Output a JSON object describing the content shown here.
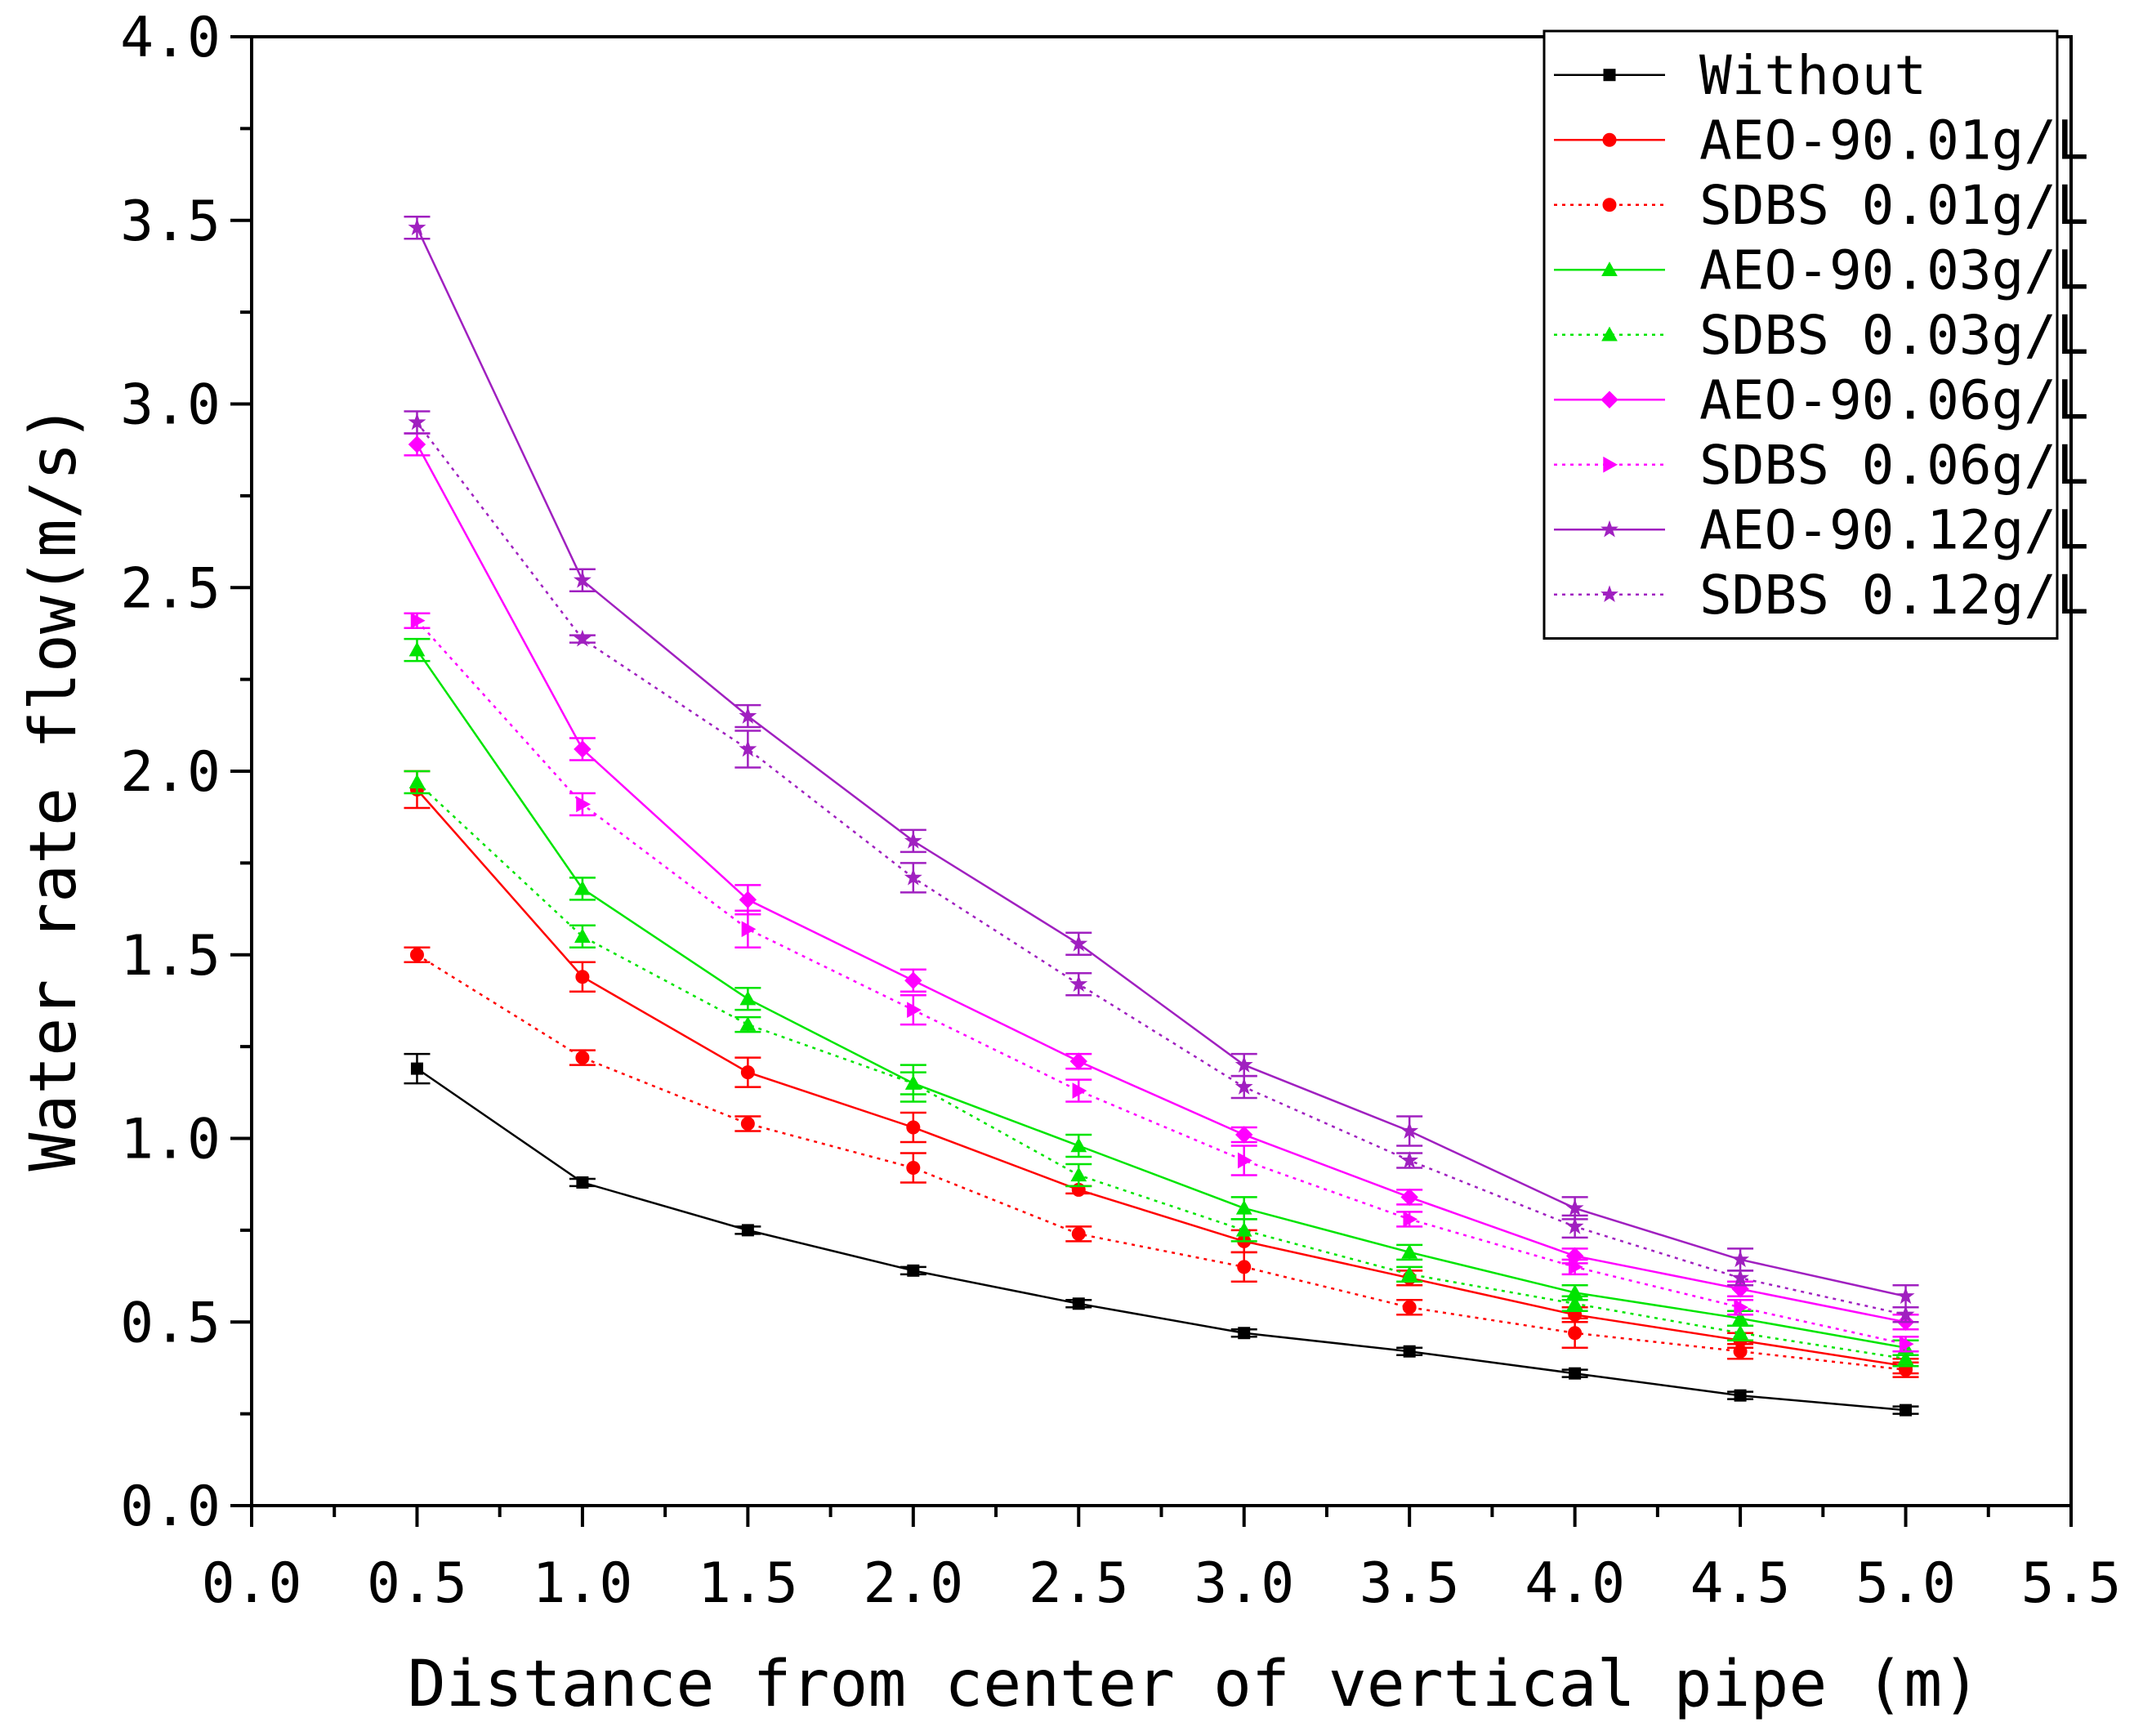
{
  "chart_data": {
    "type": "line",
    "title": "",
    "xlabel": "Distance from center of vertical pipe (m)",
    "ylabel": "Water rate flow(m/s)",
    "xlim": [
      0.0,
      5.5
    ],
    "ylim": [
      0.0,
      4.0
    ],
    "x_ticks": [
      "0.0",
      "0.5",
      "1.0",
      "1.5",
      "2.0",
      "2.5",
      "3.0",
      "3.5",
      "4.0",
      "4.5",
      "5.0",
      "5.5"
    ],
    "y_ticks": [
      "0.0",
      "0.5",
      "1.0",
      "1.5",
      "2.0",
      "2.5",
      "3.0",
      "3.5",
      "4.0"
    ],
    "x": [
      0.5,
      1.0,
      1.5,
      2.0,
      2.5,
      3.0,
      3.5,
      4.0,
      4.5,
      5.0
    ],
    "legend_position": "top-right",
    "series": [
      {
        "name": "Without",
        "color": "#000000",
        "line": "solid",
        "marker": "square",
        "values": [
          1.19,
          0.88,
          0.75,
          0.64,
          0.55,
          0.47,
          0.42,
          0.36,
          0.3,
          0.26
        ],
        "errors": [
          0.04,
          0.01,
          0.01,
          0.01,
          0.01,
          0.01,
          0.01,
          0.01,
          0.01,
          0.01
        ]
      },
      {
        "name": "AEO-90.01g/L",
        "color": "#ff0000",
        "line": "solid",
        "marker": "circle",
        "values": [
          1.95,
          1.44,
          1.18,
          1.03,
          0.86,
          0.72,
          0.62,
          0.52,
          0.45,
          0.38
        ],
        "errors": [
          0.05,
          0.04,
          0.04,
          0.04,
          0.01,
          0.03,
          0.02,
          0.02,
          0.02,
          0.02
        ]
      },
      {
        "name": "SDBS 0.01g/L",
        "color": "#ff0000",
        "line": "dotted",
        "marker": "circle",
        "values": [
          1.5,
          1.22,
          1.04,
          0.92,
          0.74,
          0.65,
          0.54,
          0.47,
          0.42,
          0.37
        ],
        "errors": [
          0.02,
          0.02,
          0.02,
          0.04,
          0.02,
          0.04,
          0.02,
          0.04,
          0.02,
          0.02
        ]
      },
      {
        "name": "AEO-90.03g/L",
        "color": "#00e400",
        "line": "solid",
        "marker": "triangle",
        "values": [
          2.33,
          1.68,
          1.38,
          1.15,
          0.98,
          0.81,
          0.69,
          0.58,
          0.51,
          0.43
        ],
        "errors": [
          0.03,
          0.03,
          0.03,
          0.05,
          0.03,
          0.03,
          0.02,
          0.02,
          0.02,
          0.02
        ]
      },
      {
        "name": "SDBS 0.03g/L",
        "color": "#00e400",
        "line": "dotted",
        "marker": "triangle",
        "values": [
          1.97,
          1.55,
          1.31,
          1.15,
          0.9,
          0.75,
          0.63,
          0.55,
          0.47,
          0.4
        ],
        "errors": [
          0.03,
          0.03,
          0.02,
          0.03,
          0.03,
          0.03,
          0.02,
          0.02,
          0.02,
          0.02
        ]
      },
      {
        "name": "AEO-90.06g/L",
        "color": "#ff00ff",
        "line": "solid",
        "marker": "diamond",
        "values": [
          2.89,
          2.06,
          1.65,
          1.43,
          1.21,
          1.01,
          0.84,
          0.68,
          0.59,
          0.5
        ],
        "errors": [
          0.03,
          0.03,
          0.04,
          0.03,
          0.02,
          0.02,
          0.02,
          0.02,
          0.02,
          0.02
        ]
      },
      {
        "name": "SDBS 0.06g/L",
        "color": "#ff00ff",
        "line": "dotted",
        "marker": "triangle-right",
        "values": [
          2.41,
          1.91,
          1.57,
          1.35,
          1.13,
          0.94,
          0.78,
          0.65,
          0.54,
          0.44
        ],
        "errors": [
          0.02,
          0.03,
          0.05,
          0.04,
          0.03,
          0.04,
          0.02,
          0.02,
          0.02,
          0.02
        ]
      },
      {
        "name": "AEO-90.12g/L",
        "color": "#a020c0",
        "line": "solid",
        "marker": "star",
        "values": [
          3.48,
          2.52,
          2.15,
          1.81,
          1.53,
          1.2,
          1.02,
          0.81,
          0.67,
          0.57
        ],
        "errors": [
          0.03,
          0.03,
          0.03,
          0.03,
          0.03,
          0.03,
          0.04,
          0.03,
          0.03,
          0.03
        ]
      },
      {
        "name": "SDBS 0.12g/L",
        "color": "#a020c0",
        "line": "dotted",
        "marker": "star",
        "values": [
          2.95,
          2.36,
          2.06,
          1.71,
          1.42,
          1.14,
          0.94,
          0.76,
          0.62,
          0.52
        ],
        "errors": [
          0.03,
          0.01,
          0.05,
          0.04,
          0.03,
          0.03,
          0.02,
          0.03,
          0.02,
          0.02
        ]
      }
    ]
  }
}
